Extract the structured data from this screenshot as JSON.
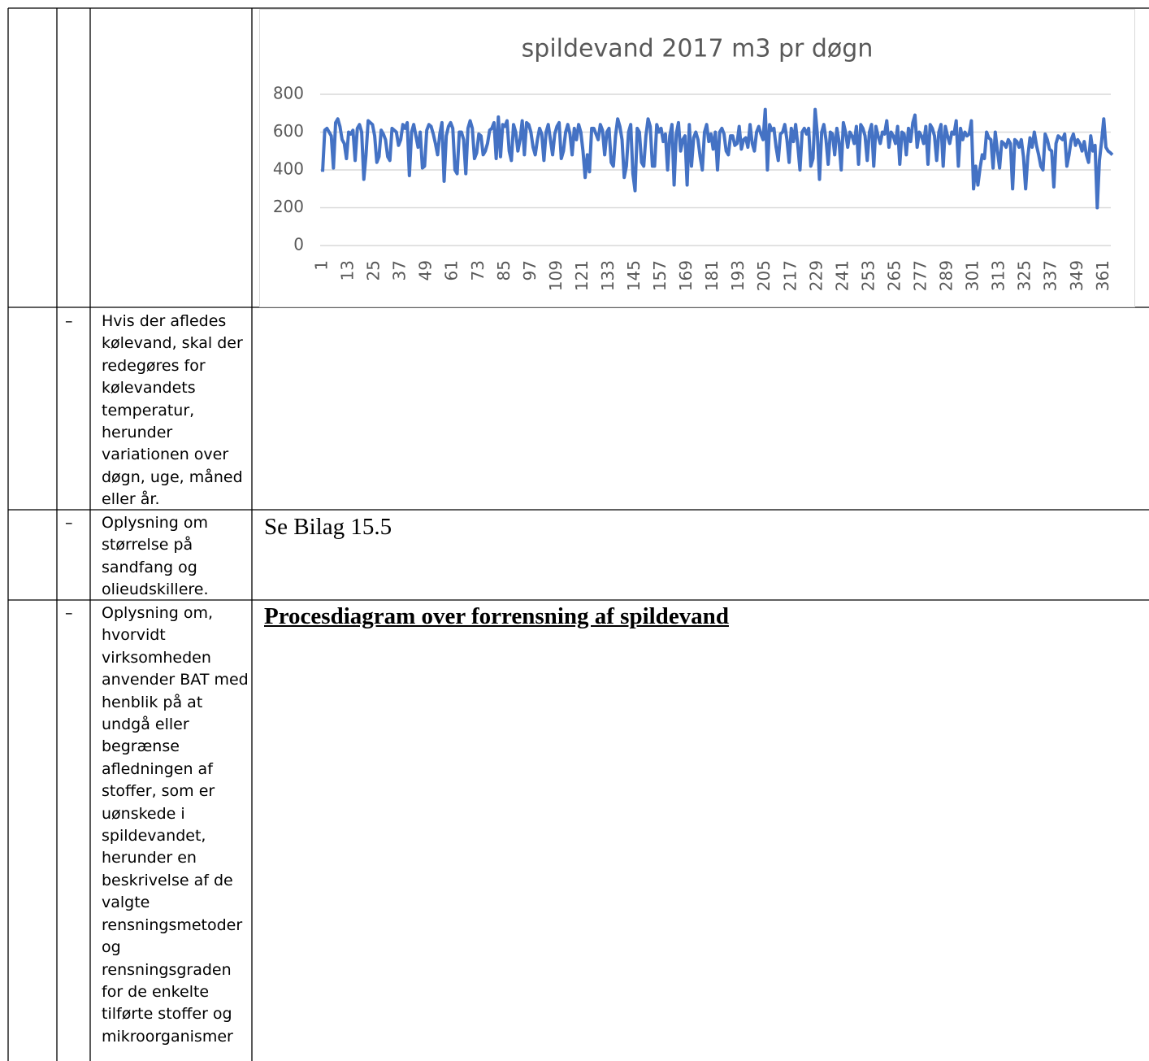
{
  "rows": [
    {
      "dash": "–",
      "text": "Hvis der afledes kølevand, skal der redegøres for kølevandets temperatur, herunder variationen over døgn, uge, måned eller år."
    },
    {
      "dash": "–",
      "text": "Oplysning om størrelse på sandfang og olieudskillere.",
      "answer": "Se Bilag 15.5"
    },
    {
      "dash": "–",
      "text": "Oplysning om, hvorvidt virksomheden anvender BAT med henblik på at undgå eller begrænse afledningen af stoffer, som er uønskede i spildevandet, herunder en beskrivelse af de valgte rensningsmetoder og rensningsgraden for de enkelte tilførte stoffer og mikroorganismer",
      "heading": "Procesdiagram over forrensning af spildevand"
    }
  ],
  "chart_data": {
    "type": "line",
    "title": "spildevand 2017 m3 pr døgn",
    "color": "#4472c4",
    "grid": true,
    "xlim": [
      1,
      365
    ],
    "ylim": [
      0,
      800
    ],
    "yticks": [
      0,
      200,
      400,
      600,
      800
    ],
    "xticks": [
      1,
      13,
      25,
      37,
      49,
      61,
      73,
      85,
      97,
      109,
      121,
      133,
      145,
      157,
      169,
      181,
      193,
      205,
      217,
      229,
      241,
      253,
      265,
      277,
      289,
      301,
      313,
      325,
      337,
      349,
      361
    ],
    "x": [
      1,
      2,
      3,
      4,
      5,
      6,
      7,
      8,
      9,
      10,
      11,
      12,
      13,
      14,
      15,
      16,
      17,
      18,
      19,
      20,
      21,
      22,
      23,
      24,
      25,
      26,
      27,
      28,
      29,
      30,
      31,
      32,
      33,
      34,
      35,
      36,
      37,
      38,
      39,
      40,
      41,
      42,
      43,
      44,
      45,
      46,
      47,
      48,
      49,
      50,
      51,
      52,
      53,
      54,
      55,
      56,
      57,
      58,
      59,
      60,
      61,
      62,
      63,
      64,
      65,
      66,
      67,
      68,
      69,
      70,
      71,
      72,
      73,
      74,
      75,
      76,
      77,
      78,
      79,
      80,
      81,
      82,
      83,
      84,
      85,
      86,
      87,
      88,
      89,
      90,
      91,
      92,
      93,
      94,
      95,
      96,
      97,
      98,
      99,
      100,
      101,
      102,
      103,
      104,
      105,
      106,
      107,
      108,
      109,
      110,
      111,
      112,
      113,
      114,
      115,
      116,
      117,
      118,
      119,
      120,
      121,
      122,
      123,
      124,
      125,
      126,
      127,
      128,
      129,
      130,
      131,
      132,
      133,
      134,
      135,
      136,
      137,
      138,
      139,
      140,
      141,
      142,
      143,
      144,
      145,
      146,
      147,
      148,
      149,
      150,
      151,
      152,
      153,
      154,
      155,
      156,
      157,
      158,
      159,
      160,
      161,
      162,
      163,
      164,
      165,
      166,
      167,
      168,
      169,
      170,
      171,
      172,
      173,
      174,
      175,
      176,
      177,
      178,
      179,
      180,
      181,
      182,
      183,
      184,
      185,
      186,
      187,
      188,
      189,
      190,
      191,
      192,
      193,
      194,
      195,
      196,
      197,
      198,
      199,
      200,
      201,
      202,
      203,
      204,
      205,
      206,
      207,
      208,
      209,
      210,
      211,
      212,
      213,
      214,
      215,
      216,
      217,
      218,
      219,
      220,
      221,
      222,
      223,
      224,
      225,
      226,
      227,
      228,
      229,
      230,
      231,
      232,
      233,
      234,
      235,
      236,
      237,
      238,
      239,
      240,
      241,
      242,
      243,
      244,
      245,
      246,
      247,
      248,
      249,
      250,
      251,
      252,
      253,
      254,
      255,
      256,
      257,
      258,
      259,
      260,
      261,
      262,
      263,
      264,
      265,
      266,
      267,
      268,
      269,
      270,
      271,
      272,
      273,
      274,
      275,
      276,
      277,
      278,
      279,
      280,
      281,
      282,
      283,
      284,
      285,
      286,
      287,
      288,
      289,
      290,
      291,
      292,
      293,
      294,
      295,
      296,
      297,
      298,
      299,
      300,
      301,
      302,
      303,
      304,
      305,
      306,
      307,
      308,
      309,
      310,
      311,
      312,
      313,
      314,
      315,
      316,
      317,
      318,
      319,
      320,
      321,
      322,
      323,
      324,
      325,
      326,
      327,
      328,
      329,
      330,
      331,
      332,
      333,
      334,
      335,
      336,
      337,
      338,
      339,
      340,
      341,
      342,
      343,
      344,
      345,
      346,
      347,
      348,
      349,
      350,
      351,
      352,
      353,
      354,
      355,
      356,
      357,
      358,
      359,
      360,
      361,
      362,
      363,
      364,
      365
    ],
    "values": [
      390,
      610,
      620,
      600,
      580,
      410,
      650,
      670,
      630,
      560,
      540,
      460,
      600,
      590,
      610,
      450,
      620,
      640,
      600,
      350,
      480,
      660,
      650,
      640,
      580,
      440,
      470,
      610,
      590,
      560,
      470,
      450,
      620,
      610,
      600,
      530,
      560,
      640,
      620,
      650,
      370,
      600,
      640,
      580,
      520,
      600,
      410,
      420,
      610,
      640,
      630,
      590,
      540,
      480,
      590,
      650,
      340,
      580,
      630,
      650,
      620,
      400,
      380,
      600,
      600,
      560,
      380,
      620,
      660,
      620,
      460,
      490,
      590,
      580,
      480,
      500,
      540,
      610,
      620,
      650,
      460,
      680,
      470,
      640,
      630,
      660,
      500,
      450,
      640,
      600,
      500,
      560,
      660,
      480,
      650,
      640,
      600,
      520,
      480,
      560,
      620,
      590,
      450,
      600,
      640,
      560,
      480,
      590,
      630,
      650,
      460,
      500,
      600,
      640,
      590,
      480,
      620,
      560,
      640,
      600,
      500,
      360,
      480,
      390,
      620,
      620,
      590,
      560,
      640,
      610,
      480,
      600,
      620,
      440,
      420,
      580,
      670,
      630,
      560,
      360,
      420,
      600,
      640,
      380,
      290,
      620,
      600,
      440,
      420,
      580,
      670,
      630,
      420,
      420,
      640,
      600,
      620,
      550,
      590,
      400,
      580,
      640,
      320,
      590,
      650,
      500,
      560,
      580,
      320,
      640,
      420,
      570,
      600,
      560,
      470,
      400,
      600,
      640,
      550,
      590,
      510,
      600,
      400,
      600,
      620,
      590,
      500,
      480,
      580,
      580,
      530,
      540,
      630,
      510,
      560,
      570,
      520,
      640,
      540,
      500,
      600,
      630,
      590,
      560,
      720,
      400,
      640,
      610,
      620,
      520,
      450,
      590,
      600,
      640,
      560,
      440,
      620,
      550,
      640,
      530,
      400,
      600,
      620,
      590,
      620,
      420,
      460,
      720,
      590,
      350,
      600,
      640,
      560,
      430,
      600,
      590,
      480,
      620,
      550,
      400,
      650,
      600,
      520,
      600,
      580,
      540,
      630,
      430,
      640,
      620,
      580,
      450,
      600,
      640,
      420,
      630,
      580,
      540,
      600,
      590,
      660,
      520,
      600,
      580,
      540,
      630,
      430,
      600,
      590,
      480,
      620,
      550,
      650,
      690,
      520,
      600,
      580,
      540,
      630,
      430,
      640,
      620,
      580,
      450,
      600,
      640,
      420,
      630,
      580,
      540,
      600,
      590,
      660,
      420,
      620,
      560,
      600,
      580,
      590,
      660,
      300,
      420,
      320,
      410,
      480,
      460,
      600,
      570,
      560,
      410,
      600,
      500,
      410,
      550,
      540,
      520,
      560,
      540,
      300,
      560,
      550,
      520,
      560,
      470,
      300,
      470,
      570,
      520,
      600,
      530,
      480,
      420,
      400,
      590,
      560,
      510,
      500,
      310,
      540,
      580,
      570,
      560,
      590,
      420,
      480,
      560,
      590,
      530,
      560,
      540,
      500,
      550,
      480,
      440,
      580,
      500,
      530,
      200,
      450,
      550,
      670,
      520,
      500,
      491,
      480
    ]
  }
}
